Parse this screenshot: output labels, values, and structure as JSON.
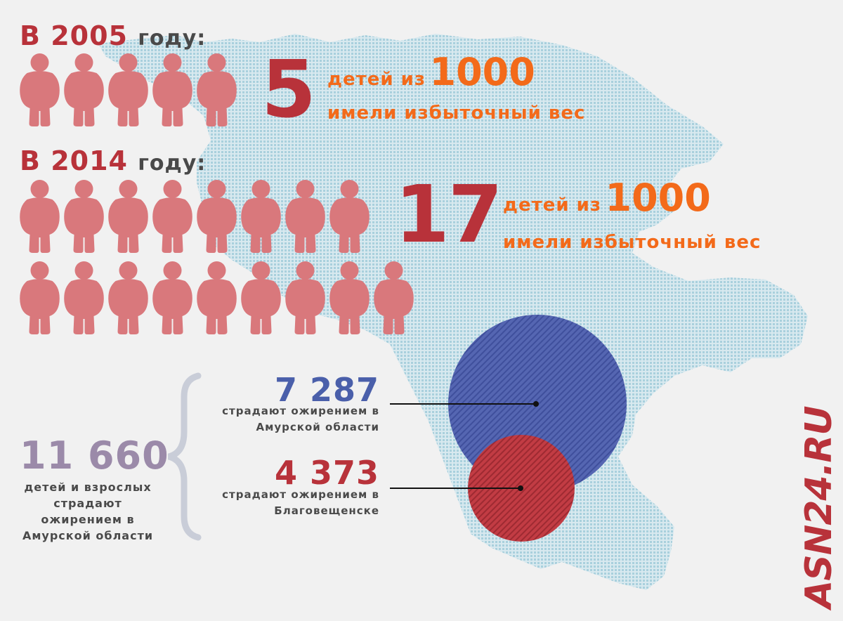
{
  "section_2005": {
    "year_prefix": "В 2005",
    "year_suffix": "году:",
    "count": "5",
    "line1_small": "детей из",
    "line1_big": "1000",
    "line2": "имели избыточный вес",
    "figures": 5
  },
  "section_2014": {
    "year_prefix": "В 2014",
    "year_suffix": "году:",
    "count": "17",
    "line1_small": "детей из",
    "line1_big": "1000",
    "line2": "имели избыточный вес",
    "figures": 17
  },
  "total": {
    "value": "11 660",
    "caption_lines": [
      "детей и взрослых",
      "страдают",
      "ожирением в",
      "Амурской области"
    ]
  },
  "stats": [
    {
      "value": "7 287",
      "caption_lines": [
        "страдают ожирением в",
        "Амурской области"
      ],
      "color": "#4a5faa"
    },
    {
      "value": "4 373",
      "caption_lines": [
        "страдают ожирением в",
        "Благовещенске"
      ],
      "color": "#b8323a"
    }
  ],
  "watermark": "ASN24.RU",
  "colors": {
    "accent_red": "#b8323a",
    "accent_orange": "#f36a1a",
    "figure": "#d9787c",
    "map": "#a9d0dd",
    "circle_blue": "#4a5faa",
    "total_purple": "#9b8aa9"
  },
  "icon": "overweight-child-icon"
}
